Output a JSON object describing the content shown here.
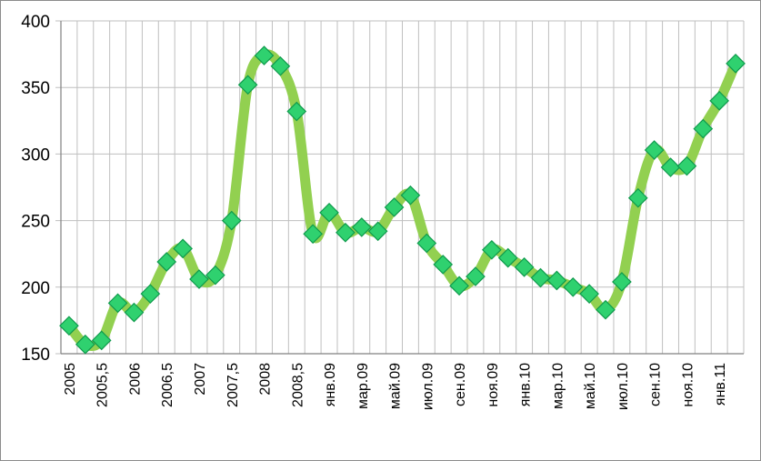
{
  "chart_data": {
    "type": "line",
    "title": "",
    "xlabel": "",
    "ylabel": "",
    "ylim": [
      150,
      400
    ],
    "yticks": [
      150,
      200,
      250,
      300,
      350,
      400
    ],
    "grid": true,
    "x_tick_labels": [
      "2005",
      "2005,5",
      "2006",
      "2006,5",
      "2007",
      "2007,5",
      "2008",
      "2008,5",
      "янв.09",
      "мар.09",
      "май.09",
      "июл.09",
      "сен.09",
      "ноя.09",
      "янв.10",
      "мар.10",
      "май.10",
      "июл.10",
      "сен.10",
      "ноя.10",
      "янв.11"
    ],
    "series": [
      {
        "values": [
          171,
          157,
          160,
          188,
          181,
          195,
          219,
          229,
          206,
          209,
          250,
          352,
          374,
          366,
          332,
          240,
          256,
          241,
          245,
          242,
          260,
          269,
          233,
          217,
          201,
          208,
          228,
          222,
          215,
          207,
          205,
          200,
          195,
          183,
          204,
          267,
          303,
          290,
          291,
          319,
          340,
          368
        ]
      }
    ],
    "colors": {
      "line": "#92d050",
      "marker_fill": "#2fd16f",
      "marker_stroke": "#0f9a4c",
      "grid": "#bfbfbf",
      "axis": "#808080"
    },
    "marker": "diamond"
  }
}
